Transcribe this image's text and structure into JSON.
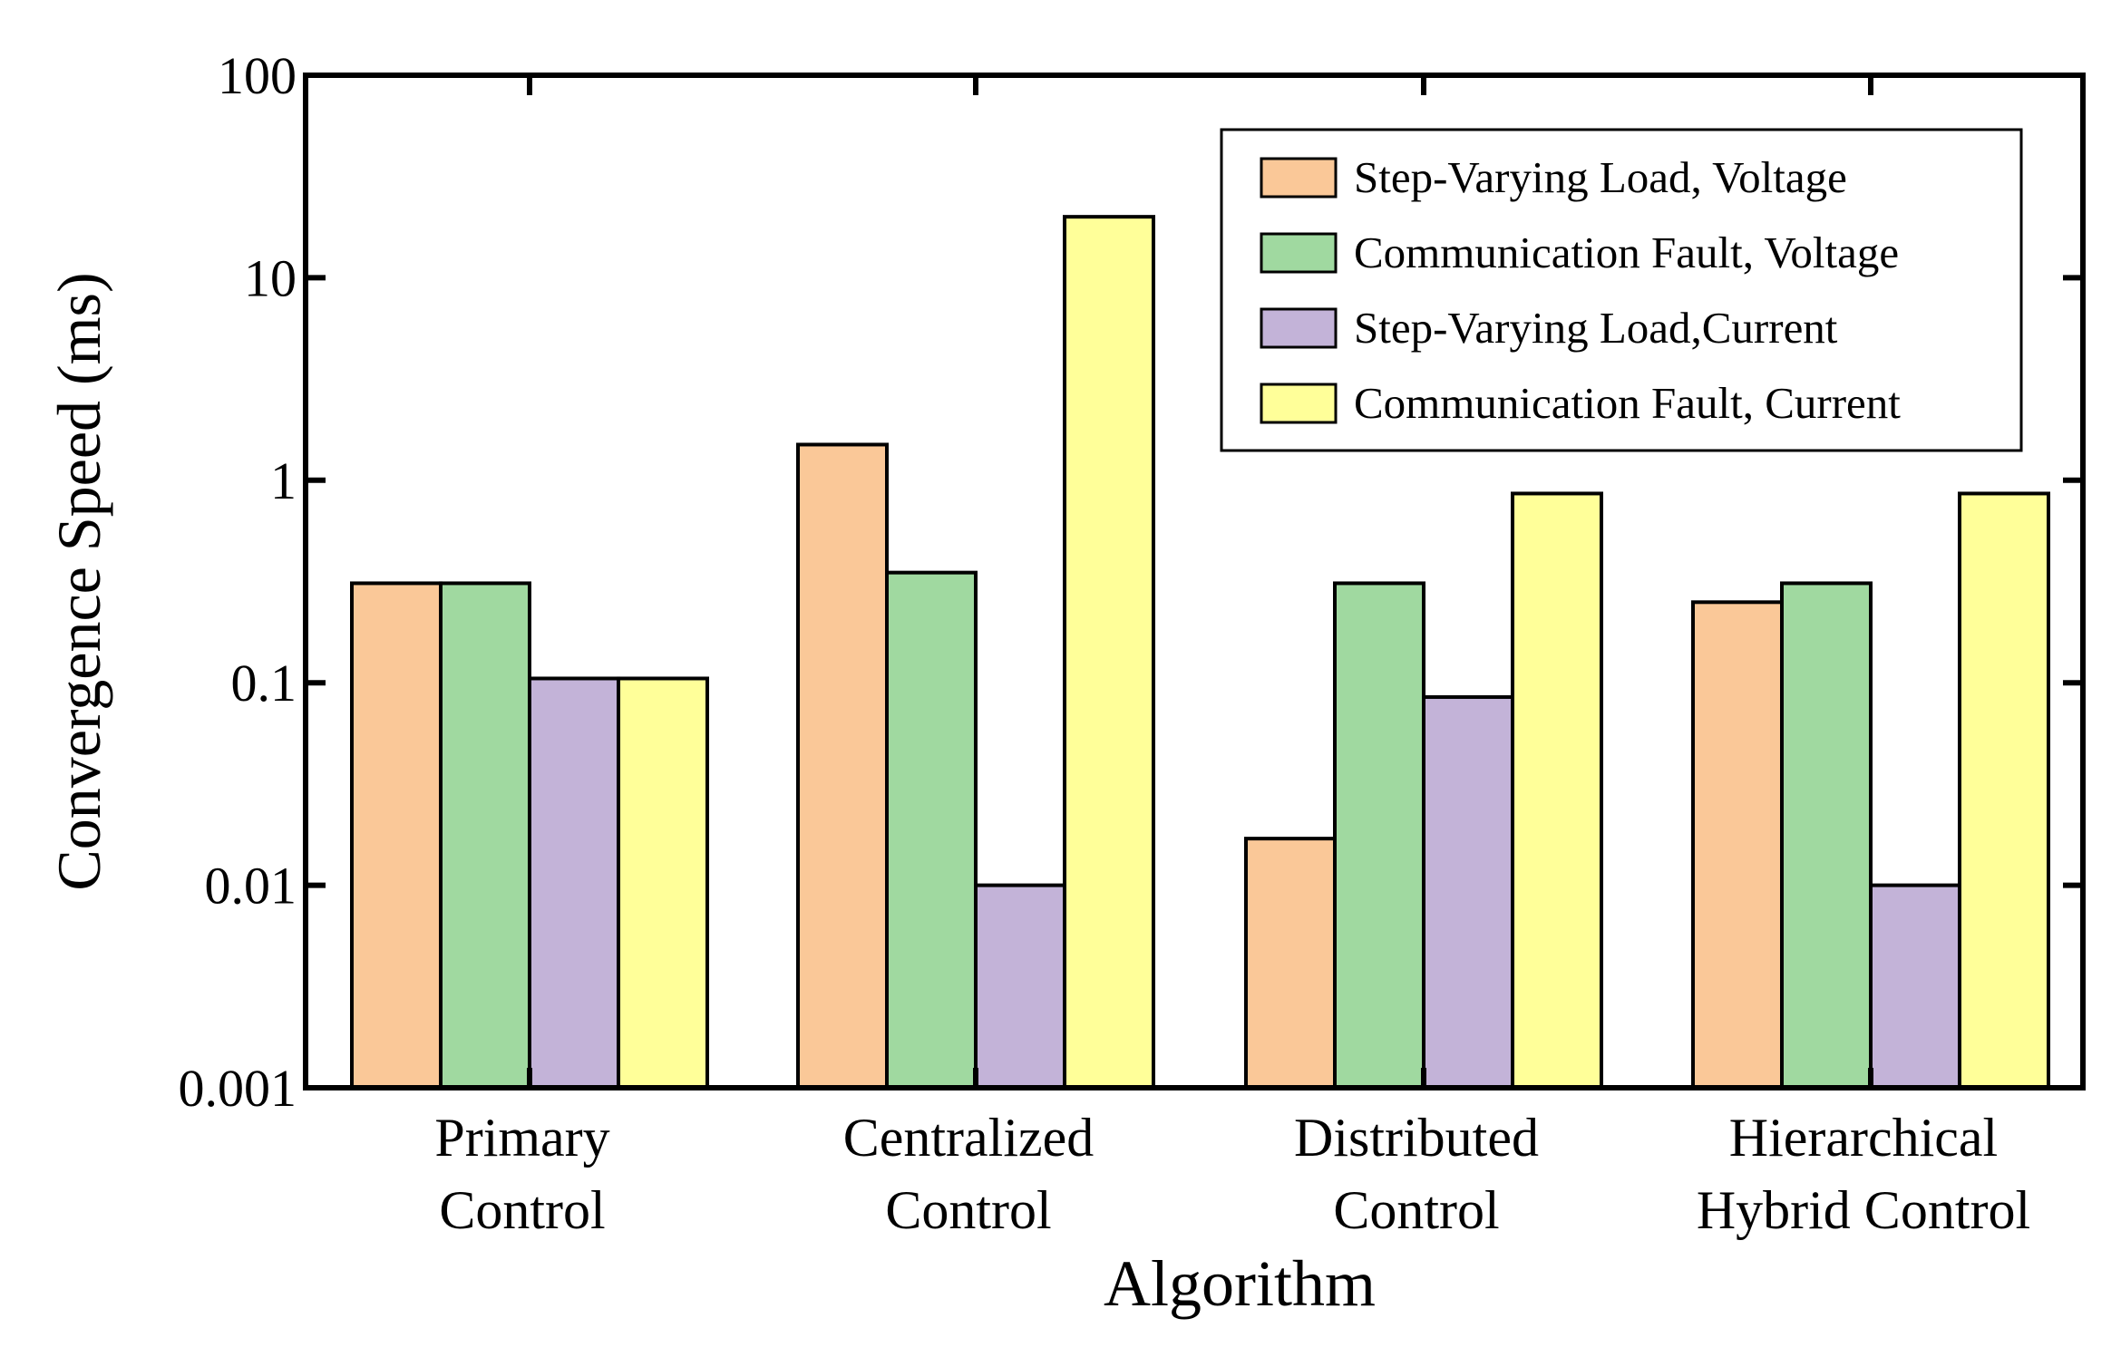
{
  "chart_data": {
    "type": "bar",
    "title": "",
    "xlabel": "Algorithm",
    "ylabel": "Convergence Speed (ms)",
    "yscale": "log",
    "ylim": [
      0.001,
      100
    ],
    "yticks": [
      0.001,
      0.01,
      0.1,
      1,
      10,
      100
    ],
    "ytick_labels": [
      "0.001",
      "0.01",
      "0.1",
      "1",
      "10",
      "100"
    ],
    "categories": [
      [
        "Primary",
        "Control"
      ],
      [
        "Centralized",
        "Control"
      ],
      [
        "Distributed",
        "Control"
      ],
      [
        "Hierarchical",
        "Hybrid Control"
      ]
    ],
    "series": [
      {
        "name": "Step-Varying Load, Voltage",
        "color": "#FAC898",
        "values": [
          0.31,
          1.5,
          0.017,
          0.25
        ]
      },
      {
        "name": "Communication Fault, Voltage",
        "color": "#A0D9A0",
        "values": [
          0.31,
          0.35,
          0.31,
          0.31
        ]
      },
      {
        "name": "Step-Varying Load,Current",
        "color": "#C3B3D8",
        "values": [
          0.105,
          0.01,
          0.085,
          0.01
        ]
      },
      {
        "name": "Communication Fault, Current",
        "color": "#FFFF99",
        "values": [
          0.105,
          20,
          0.86,
          0.86
        ]
      }
    ],
    "grid": false,
    "legend_position": "top-right"
  }
}
